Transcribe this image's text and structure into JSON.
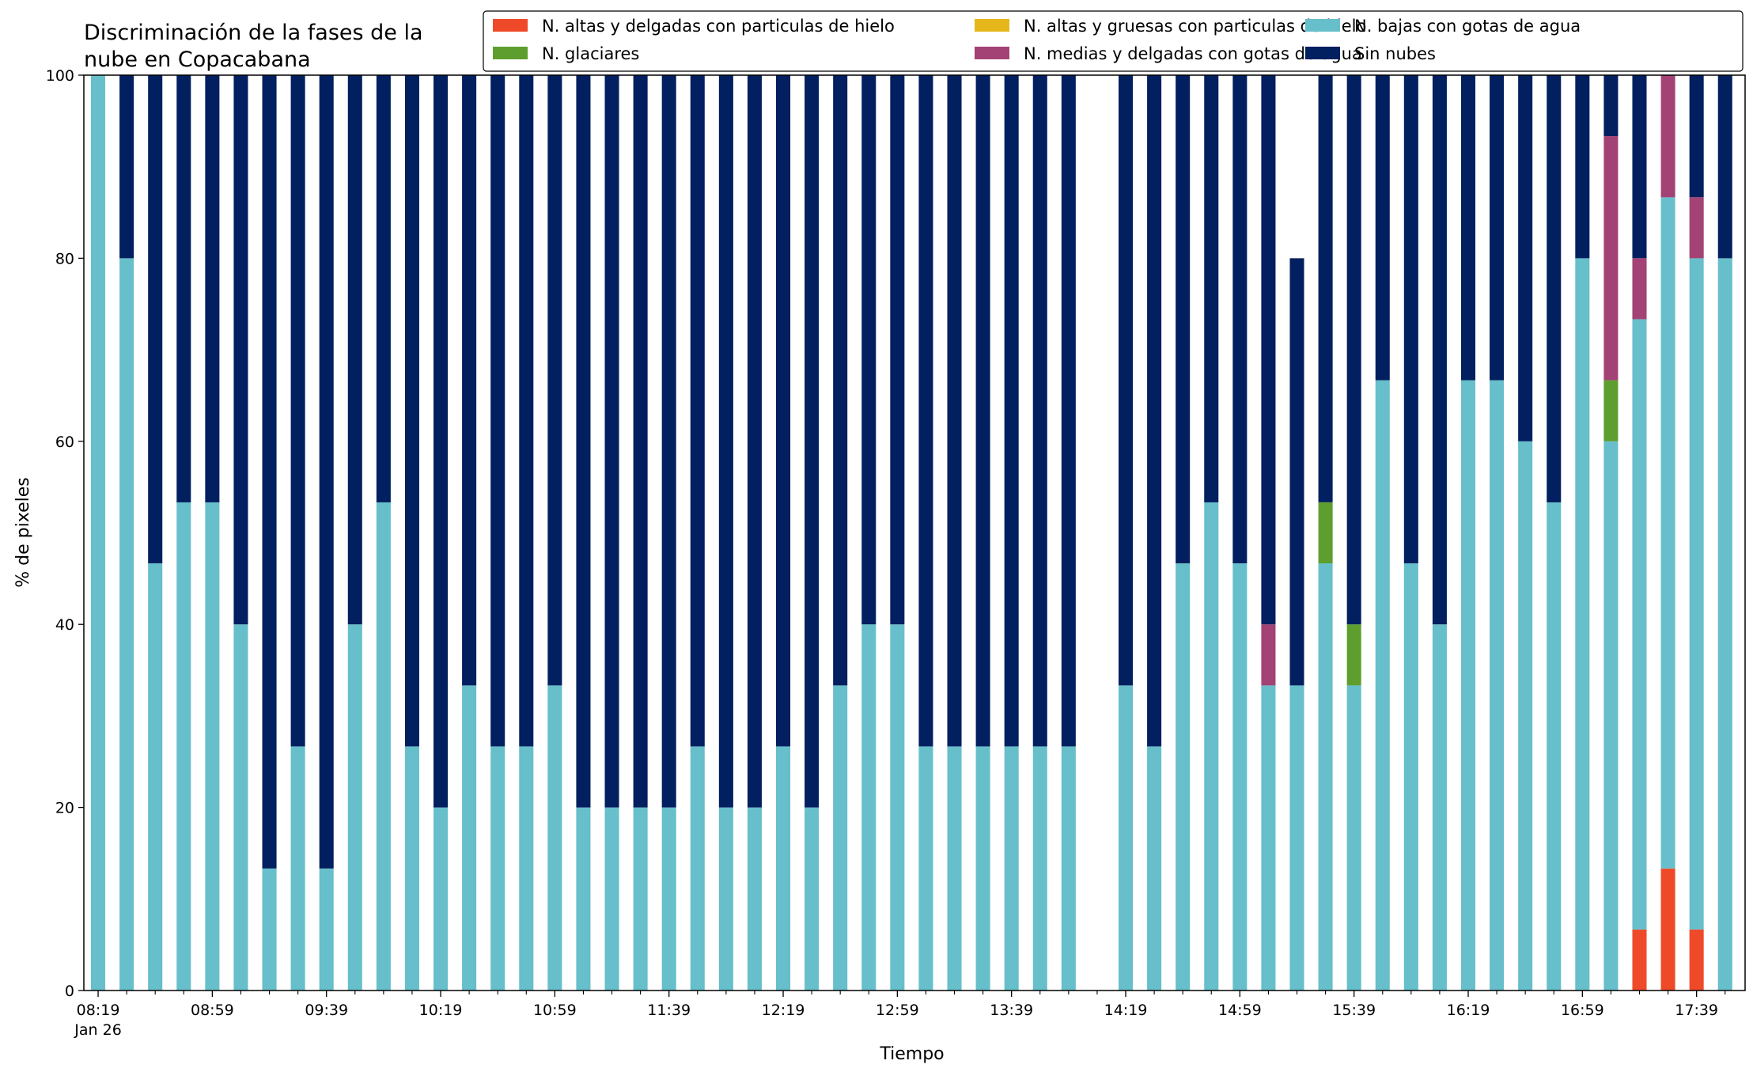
{
  "chart_data": {
    "type": "bar",
    "stacked": true,
    "title": "Discriminación de la fases de la nube en Copacabana",
    "title_lines": [
      "Discriminación de la fases de la",
      "nube en Copacabana"
    ],
    "xlabel": "Tiempo",
    "ylabel": "% de pixeles",
    "ylim": [
      0,
      100
    ],
    "yticks": [
      0,
      20,
      40,
      60,
      80,
      100
    ],
    "grid": false,
    "legend_position": "top-right",
    "x_start": "2024-01-26 08:19",
    "x_step_minutes": 10,
    "x_end": "2024-01-26 17:49",
    "x_tick_labels": [
      {
        "x": "08:19",
        "label": "08:19",
        "sublabel": "Jan 26"
      },
      {
        "x": "08:59",
        "label": "08:59",
        "sublabel": ""
      },
      {
        "x": "09:39",
        "label": "09:39",
        "sublabel": ""
      },
      {
        "x": "10:19",
        "label": "10:19",
        "sublabel": ""
      },
      {
        "x": "10:59",
        "label": "10:59",
        "sublabel": ""
      },
      {
        "x": "11:39",
        "label": "11:39",
        "sublabel": ""
      },
      {
        "x": "12:19",
        "label": "12:19",
        "sublabel": ""
      },
      {
        "x": "12:59",
        "label": "12:59",
        "sublabel": ""
      },
      {
        "x": "13:39",
        "label": "13:39",
        "sublabel": ""
      },
      {
        "x": "14:19",
        "label": "14:19",
        "sublabel": ""
      },
      {
        "x": "14:59",
        "label": "14:59",
        "sublabel": ""
      },
      {
        "x": "15:39",
        "label": "15:39",
        "sublabel": ""
      },
      {
        "x": "16:19",
        "label": "16:19",
        "sublabel": ""
      },
      {
        "x": "16:59",
        "label": "16:59",
        "sublabel": ""
      },
      {
        "x": "17:39",
        "label": "17:39",
        "sublabel": ""
      }
    ],
    "x": [
      "08:19",
      "08:29",
      "08:39",
      "08:49",
      "08:59",
      "09:09",
      "09:19",
      "09:29",
      "09:39",
      "09:49",
      "09:59",
      "10:09",
      "10:19",
      "10:29",
      "10:39",
      "10:49",
      "10:59",
      "11:09",
      "11:19",
      "11:29",
      "11:39",
      "11:49",
      "11:59",
      "12:09",
      "12:19",
      "12:29",
      "12:39",
      "12:49",
      "12:59",
      "13:09",
      "13:19",
      "13:29",
      "13:39",
      "13:49",
      "13:59",
      "14:19",
      "14:29",
      "14:39",
      "14:49",
      "14:59",
      "15:09",
      "15:19",
      "15:29",
      "15:39",
      "15:49",
      "15:59",
      "16:09",
      "16:19",
      "16:29",
      "16:39",
      "16:49",
      "16:59",
      "17:09",
      "17:19",
      "17:29",
      "17:39",
      "17:49"
    ],
    "series": [
      {
        "name": "N. altas y delgadas con particulas de hielo",
        "color": "#ee4a2a",
        "values": [
          0,
          0,
          0,
          0,
          0,
          0,
          0,
          0,
          0,
          0,
          0,
          0,
          0,
          0,
          0,
          0,
          0,
          0,
          0,
          0,
          0,
          0,
          0,
          0,
          0,
          0,
          0,
          0,
          0,
          0,
          0,
          0,
          0,
          0,
          0,
          0,
          0,
          0,
          0,
          0,
          0,
          0,
          0,
          0,
          0,
          0,
          0,
          0,
          0,
          0,
          0,
          0,
          0,
          6.67,
          13.33,
          6.67,
          0
        ]
      },
      {
        "name": "N. altas y gruesas con particulas de hielo",
        "color": "#e5b71a",
        "values": [
          0,
          0,
          0,
          0,
          0,
          0,
          0,
          0,
          0,
          0,
          0,
          0,
          0,
          0,
          0,
          0,
          0,
          0,
          0,
          0,
          0,
          0,
          0,
          0,
          0,
          0,
          0,
          0,
          0,
          0,
          0,
          0,
          0,
          0,
          0,
          0,
          0,
          0,
          0,
          0,
          0,
          0,
          0,
          0,
          0,
          0,
          0,
          0,
          0,
          0,
          0,
          0,
          0,
          0,
          0,
          0,
          0
        ]
      },
      {
        "name": "N. bajas con gotas de agua",
        "color": "#66bfca",
        "values": [
          100,
          80,
          46.67,
          53.33,
          53.33,
          40,
          13.33,
          26.67,
          13.33,
          40,
          53.33,
          26.67,
          20,
          33.33,
          26.67,
          26.67,
          33.33,
          20,
          20,
          20,
          20,
          26.67,
          20,
          20,
          26.67,
          20,
          33.33,
          40,
          40,
          26.67,
          26.67,
          26.67,
          26.67,
          26.67,
          26.67,
          33.33,
          26.67,
          46.67,
          53.33,
          46.67,
          33.33,
          33.33,
          46.67,
          33.33,
          66.67,
          46.67,
          40,
          66.67,
          66.67,
          60,
          53.33,
          80,
          60,
          66.67,
          73.33,
          73.33,
          80
        ]
      },
      {
        "name": "N. glaciares",
        "color": "#5e9e2e",
        "values": [
          0,
          0,
          0,
          0,
          0,
          0,
          0,
          0,
          0,
          0,
          0,
          0,
          0,
          0,
          0,
          0,
          0,
          0,
          0,
          0,
          0,
          0,
          0,
          0,
          0,
          0,
          0,
          0,
          0,
          0,
          0,
          0,
          0,
          0,
          0,
          0,
          0,
          0,
          0,
          0,
          0,
          0,
          6.67,
          6.67,
          0,
          0,
          0,
          0,
          0,
          0,
          0,
          0,
          6.67,
          0,
          0,
          0,
          0
        ]
      },
      {
        "name": "N. medias y delgadas con gotas de agua",
        "color": "#a34275",
        "values": [
          0,
          0,
          0,
          0,
          0,
          0,
          0,
          0,
          0,
          0,
          0,
          0,
          0,
          0,
          0,
          0,
          0,
          0,
          0,
          0,
          0,
          0,
          0,
          0,
          0,
          0,
          0,
          0,
          0,
          0,
          0,
          0,
          0,
          0,
          0,
          0,
          0,
          0,
          0,
          0,
          6.67,
          0,
          0,
          0,
          0,
          0,
          0,
          0,
          0,
          0,
          0,
          0,
          26.67,
          6.67,
          13.33,
          6.67,
          0
        ]
      },
      {
        "name": "Sin nubes",
        "color": "#021f60",
        "values": [
          0,
          20,
          53.33,
          46.67,
          46.67,
          60,
          86.67,
          73.33,
          86.67,
          60,
          46.67,
          73.33,
          80,
          66.67,
          73.33,
          73.33,
          66.67,
          80,
          80,
          80,
          80,
          73.33,
          80,
          80,
          73.33,
          80,
          66.67,
          60,
          60,
          73.33,
          73.33,
          73.33,
          73.33,
          73.33,
          73.33,
          66.67,
          73.33,
          53.33,
          46.67,
          53.33,
          60,
          46.67,
          46.67,
          60,
          33.33,
          53.33,
          60,
          33.33,
          33.33,
          40,
          46.67,
          20,
          6.67,
          20,
          0,
          13.33,
          20
        ]
      }
    ]
  }
}
